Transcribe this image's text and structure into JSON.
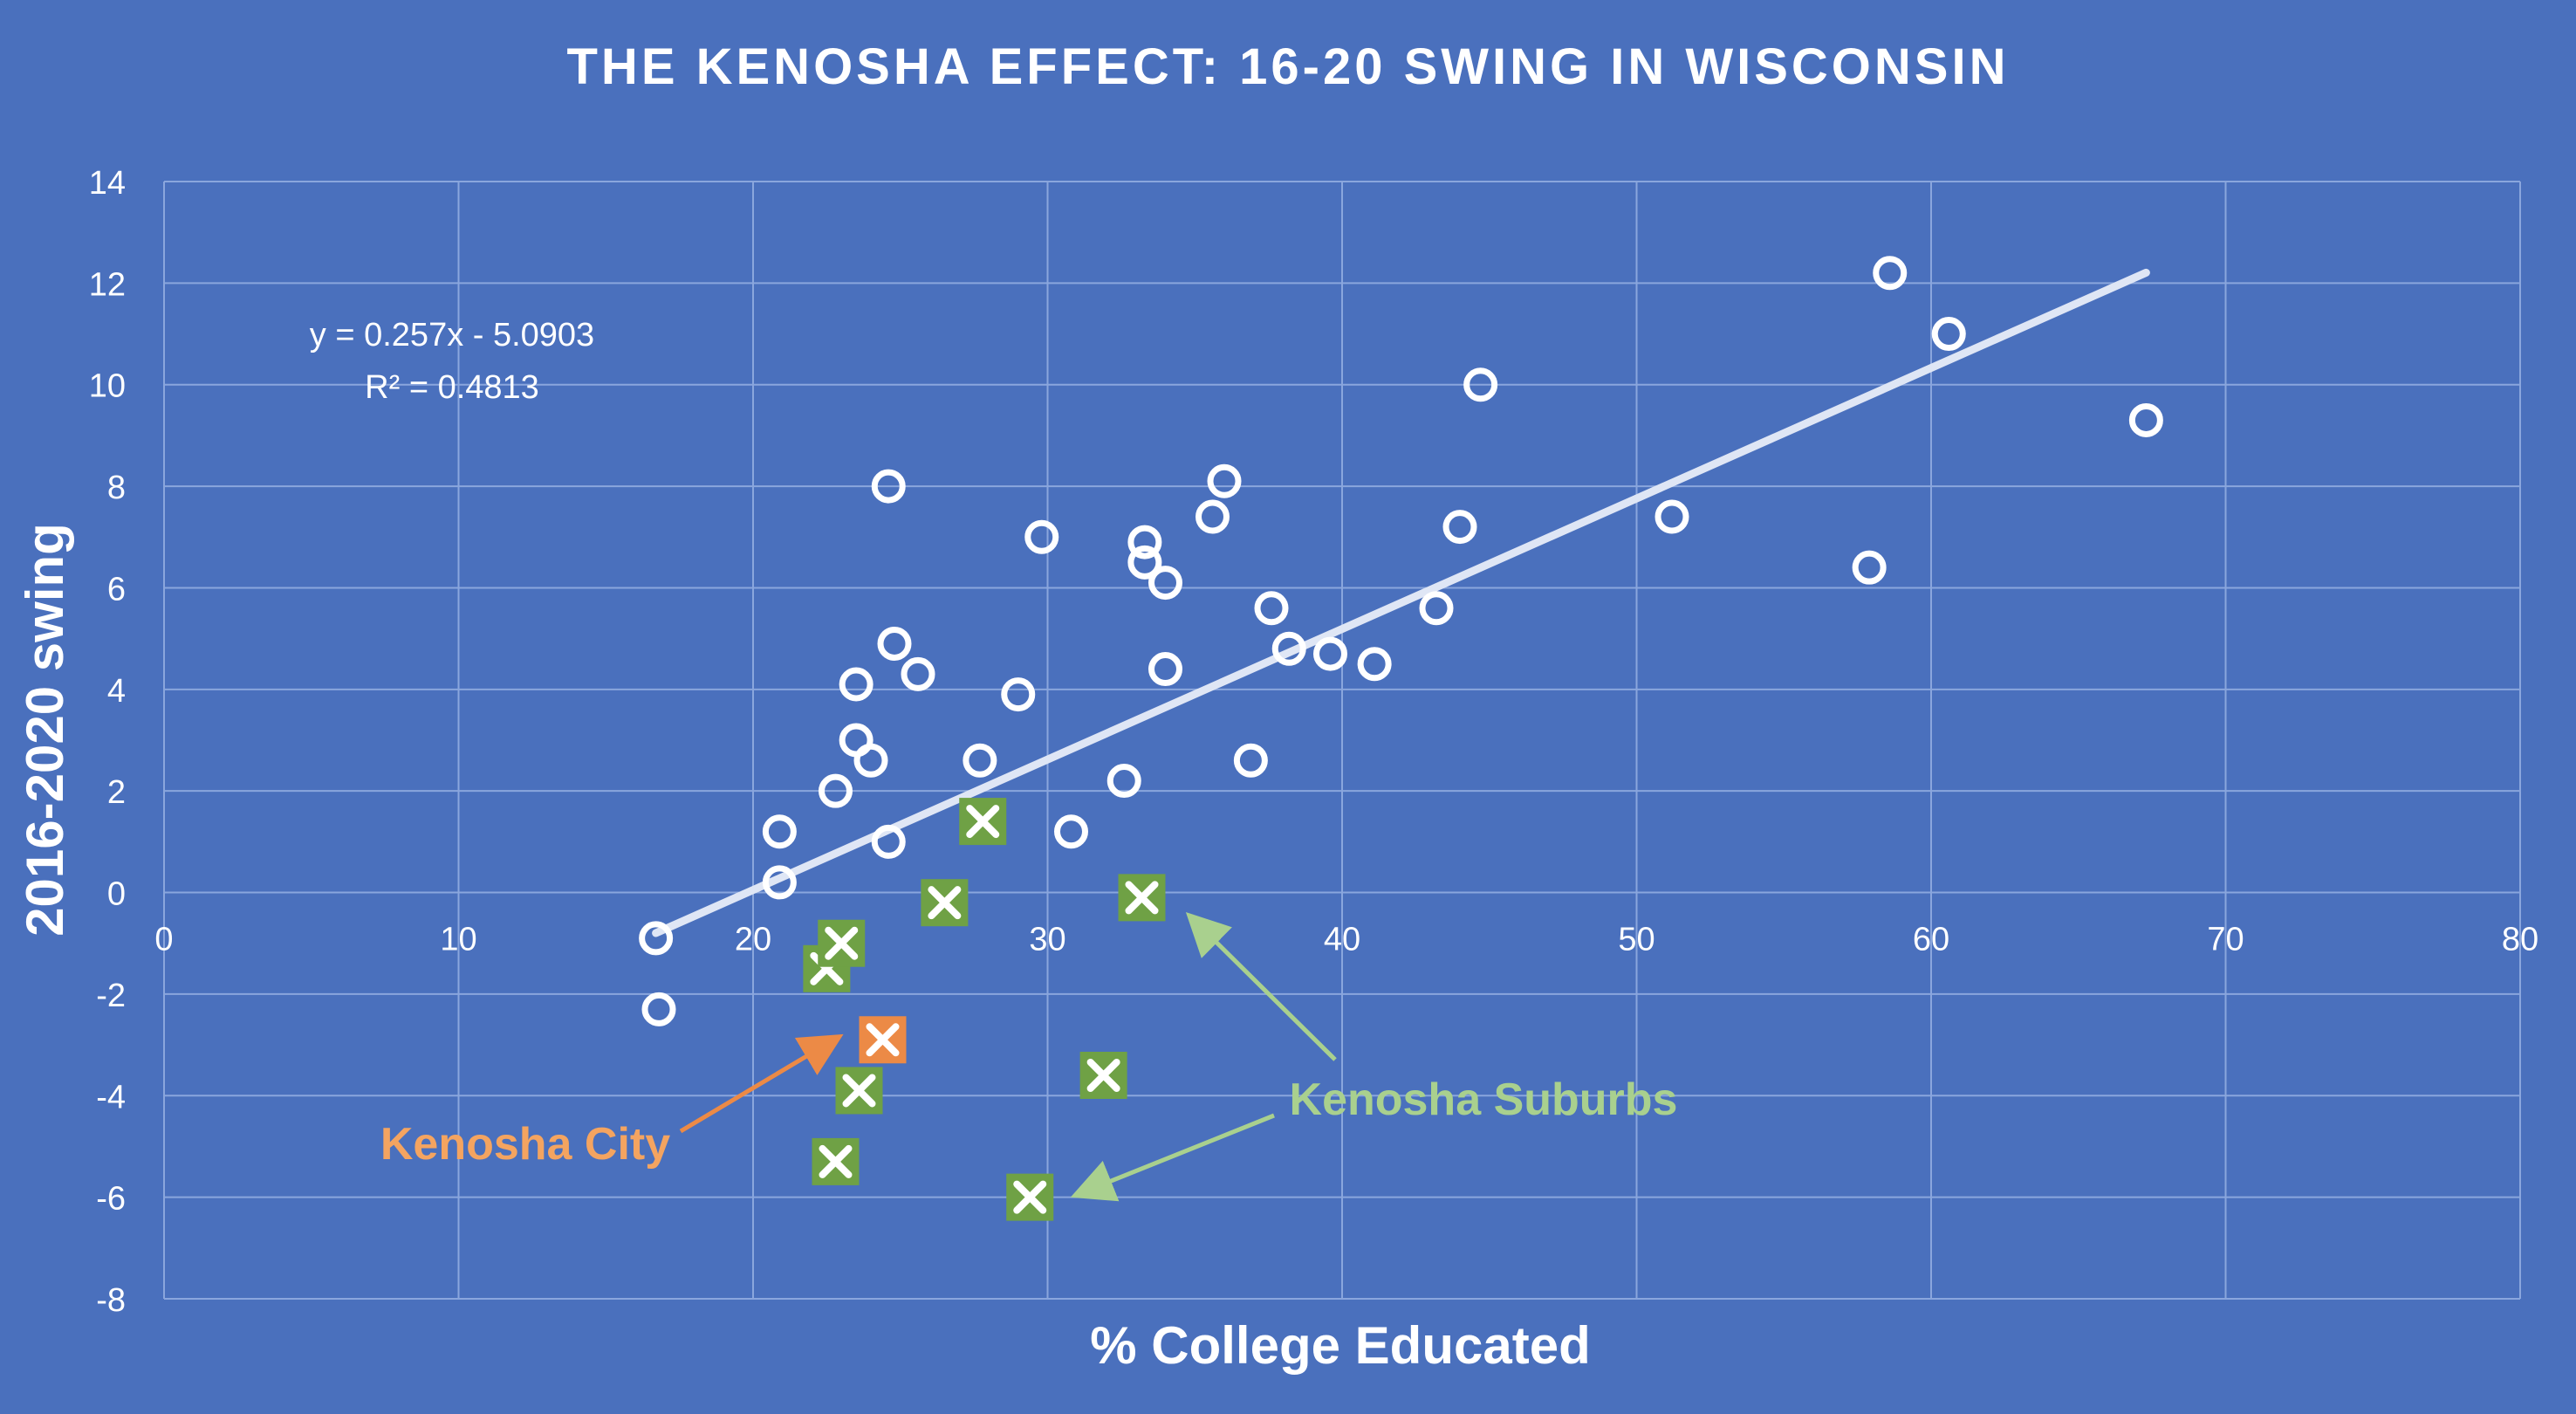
{
  "colors": {
    "background": "#4a70bd",
    "grid": "#8aa6dd",
    "text": "#ffffff",
    "point": "#ffffff",
    "trendline": "#dfe6f5",
    "suburb_fill": "#6fa145",
    "city_fill": "#ec8a46",
    "suburb_text": "#a9d08e",
    "city_text": "#f4a460"
  },
  "chart_data": {
    "type": "scatter",
    "title": "THE KENOSHA EFFECT: 16-20 SWING IN WISCONSIN",
    "xlabel": "% College Educated",
    "ylabel": "2016-2020 swing",
    "xlim": [
      0,
      80
    ],
    "ylim": [
      -8,
      14
    ],
    "xticks": [
      0,
      10,
      20,
      30,
      40,
      50,
      60,
      70,
      80
    ],
    "yticks": [
      -8,
      -6,
      -4,
      -2,
      0,
      2,
      4,
      6,
      8,
      10,
      12,
      14
    ],
    "grid": true,
    "trendline": {
      "slope": 0.257,
      "intercept": -5.0903,
      "x_range": [
        16.7,
        67.3
      ],
      "equation": "y = 0.257x - 5.0903",
      "r_squared": "R² = 0.4813"
    },
    "series": [
      {
        "marker": "open-circle",
        "points": [
          {
            "x": 16.7,
            "y": -0.9
          },
          {
            "x": 16.8,
            "y": -2.3
          },
          {
            "x": 20.9,
            "y": 1.2
          },
          {
            "x": 20.9,
            "y": 0.2
          },
          {
            "x": 22.8,
            "y": 2.0
          },
          {
            "x": 23.5,
            "y": 4.1
          },
          {
            "x": 23.5,
            "y": 3.0
          },
          {
            "x": 24.0,
            "y": 2.6
          },
          {
            "x": 24.6,
            "y": 8.0
          },
          {
            "x": 24.8,
            "y": 4.9
          },
          {
            "x": 24.6,
            "y": 1.0
          },
          {
            "x": 25.6,
            "y": 4.3
          },
          {
            "x": 27.7,
            "y": 2.6
          },
          {
            "x": 29.0,
            "y": 3.9
          },
          {
            "x": 29.8,
            "y": 7.0
          },
          {
            "x": 30.8,
            "y": 1.2
          },
          {
            "x": 32.6,
            "y": 2.2
          },
          {
            "x": 33.3,
            "y": 6.9
          },
          {
            "x": 33.3,
            "y": 6.5
          },
          {
            "x": 34.0,
            "y": 6.1
          },
          {
            "x": 34.0,
            "y": 4.4
          },
          {
            "x": 35.6,
            "y": 7.4
          },
          {
            "x": 36.0,
            "y": 8.1
          },
          {
            "x": 36.9,
            "y": 2.6
          },
          {
            "x": 37.6,
            "y": 5.6
          },
          {
            "x": 38.2,
            "y": 4.8
          },
          {
            "x": 39.6,
            "y": 4.7
          },
          {
            "x": 41.1,
            "y": 4.5
          },
          {
            "x": 43.2,
            "y": 5.6
          },
          {
            "x": 44.0,
            "y": 7.2
          },
          {
            "x": 44.7,
            "y": 10.0
          },
          {
            "x": 51.2,
            "y": 7.4
          },
          {
            "x": 57.9,
            "y": 6.4
          },
          {
            "x": 58.6,
            "y": 12.2
          },
          {
            "x": 60.6,
            "y": 11.0
          },
          {
            "x": 67.3,
            "y": 9.3
          }
        ]
      },
      {
        "name": "Kenosha Suburbs",
        "marker": "x-square",
        "points": [
          {
            "x": 22.5,
            "y": -1.5
          },
          {
            "x": 23.0,
            "y": -1.0
          },
          {
            "x": 23.6,
            "y": -3.9
          },
          {
            "x": 22.8,
            "y": -5.3
          },
          {
            "x": 26.5,
            "y": -0.2
          },
          {
            "x": 27.8,
            "y": 1.4
          },
          {
            "x": 29.4,
            "y": -6.0
          },
          {
            "x": 31.9,
            "y": -3.6
          },
          {
            "x": 33.2,
            "y": -0.1
          }
        ]
      },
      {
        "name": "Kenosha City",
        "marker": "x-square",
        "points": [
          {
            "x": 24.4,
            "y": -2.9
          }
        ]
      }
    ],
    "annotations": [
      {
        "text": "Kenosha Suburbs",
        "color": "suburb"
      },
      {
        "text": "Kenosha City",
        "color": "city"
      }
    ]
  }
}
